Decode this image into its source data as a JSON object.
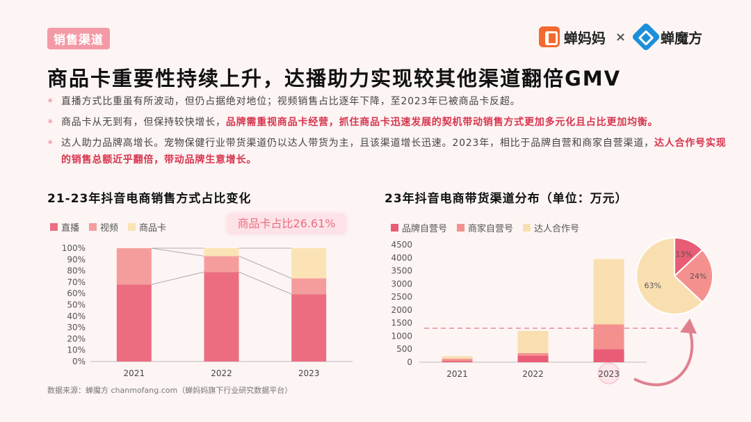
{
  "header": {
    "section_tag": "销售渠道",
    "logo_a_name": "蝉妈妈",
    "times_sign": "×",
    "logo_b_name": "蝉魔方",
    "title": "商品卡重要性持续上升，达播助力实现较其他渠道翻倍GMV"
  },
  "bullets": [
    {
      "text": "直播方式比重虽有所波动，但仍占据绝对地位；视频销售占比逐年下降，至2023年已被商品卡反超。"
    },
    {
      "plain": "商品卡从无到有，但保持较快增长，",
      "highlight": "品牌需重视商品卡经营，抓住商品卡迅速发展的契机带动销售方式更加多元化且占比更加均衡。"
    },
    {
      "plain": "达人助力品牌高增长。宠物保健行业带货渠道仍以达人带货为主，且该渠道增长迅速。2023年，相比于品牌自营和商家自营渠道，",
      "highlight": "达人合作号实现的销售总额近乎翻倍，带动品牌生意增长。"
    }
  ],
  "colors": {
    "live": "#ec6d80",
    "video": "#f59d9d",
    "card": "#fbe3b5",
    "brand": "#e85d75",
    "merchant": "#f4918f",
    "kol": "#f9dfb0",
    "accent": "#d6354e"
  },
  "callout": "商品卡占比26.61%",
  "source": "数据来源：蝉魔方  chanmofang.com（蝉妈妈旗下行业研究数据平台）",
  "chart_data": [
    {
      "type": "bar",
      "stacked": true,
      "title": "21-23年抖音电商销售方式占比变化",
      "categories": [
        "2021",
        "2022",
        "2023"
      ],
      "series": [
        {
          "name": "直播",
          "values": [
            68,
            79,
            59.4
          ]
        },
        {
          "name": "视频",
          "values": [
            32,
            14,
            14
          ]
        },
        {
          "name": "商品卡",
          "values": [
            0,
            7,
            26.61
          ]
        }
      ],
      "ylim": [
        0,
        100
      ],
      "yticks": [
        "0%",
        "10%",
        "20%",
        "30%",
        "40%",
        "50%",
        "60%",
        "70%",
        "80%",
        "90%",
        "100%"
      ]
    },
    {
      "type": "bar",
      "stacked": true,
      "title": "23年抖音电商带货渠道分布（单位：万元）",
      "categories": [
        "2021",
        "2022",
        "2023"
      ],
      "series": [
        {
          "name": "品牌自营号",
          "values": [
            50,
            250,
            500
          ]
        },
        {
          "name": "商家自营号",
          "values": [
            80,
            100,
            950
          ]
        },
        {
          "name": "达人合作号",
          "values": [
            100,
            850,
            2500
          ]
        }
      ],
      "ylim": [
        0,
        4500
      ],
      "yticks": [
        "0",
        "500",
        "1000",
        "1500",
        "2000",
        "2500",
        "3000",
        "3500",
        "4000",
        "4500"
      ],
      "reference_line": 1300
    },
    {
      "type": "pie",
      "labels": [
        "品牌自营号",
        "商家自营号",
        "达人合作号"
      ],
      "values": [
        13,
        24,
        63
      ],
      "value_labels": [
        "13%",
        "24%",
        "63%"
      ]
    }
  ]
}
